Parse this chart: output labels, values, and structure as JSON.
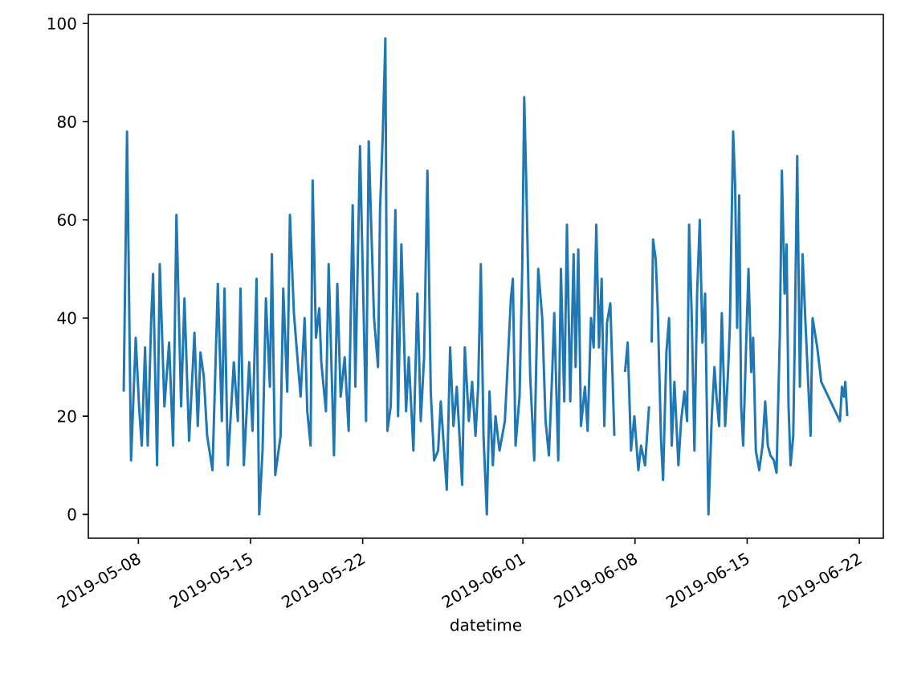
{
  "chart_data": {
    "type": "line",
    "xlabel": "datetime",
    "color": "#1f77b4",
    "xlim": [
      "2019-05-04T21:00",
      "2019-06-23T12:00"
    ],
    "ylim": [
      -4.85,
      101.85
    ],
    "xticks": [
      "2019-05-08",
      "2019-05-15",
      "2019-05-22",
      "2019-06-01",
      "2019-06-08",
      "2019-06-15",
      "2019-06-22"
    ],
    "yticks": [
      0,
      20,
      40,
      60,
      80,
      100
    ],
    "x": [
      "2019-05-07T02:00",
      "2019-05-07T07:00",
      "2019-05-07T13:00",
      "2019-05-07T20:00",
      "2019-05-08T01:00",
      "2019-05-08T05:00",
      "2019-05-08T10:00",
      "2019-05-08T14:00",
      "2019-05-08T19:00",
      "2019-05-08T22:00",
      "2019-05-09T04:00",
      "2019-05-09T08:00",
      "2019-05-09T15:00",
      "2019-05-09T22:00",
      "2019-05-10T04:00",
      "2019-05-10T09:00",
      "2019-05-10T16:00",
      "2019-05-10T21:00",
      "2019-05-11T04:00",
      "2019-05-11T12:00",
      "2019-05-11T17:00",
      "2019-05-11T21:00",
      "2019-05-12T02:00",
      "2019-05-12T07:00",
      "2019-05-12T15:00",
      "2019-05-12T23:00",
      "2019-05-13T05:00",
      "2019-05-13T09:00",
      "2019-05-13T14:00",
      "2019-05-13T23:00",
      "2019-05-14T05:00",
      "2019-05-14T09:00",
      "2019-05-14T14:00",
      "2019-05-14T22:00",
      "2019-05-15T03:00",
      "2019-05-15T09:00",
      "2019-05-15T13:00",
      "2019-05-15T18:00",
      "2019-05-15T23:00",
      "2019-05-16T05:00",
      "2019-05-16T08:00",
      "2019-05-16T13:00",
      "2019-05-16T21:00",
      "2019-05-17T01:00",
      "2019-05-17T07:00",
      "2019-05-17T11:00",
      "2019-05-17T17:00",
      "2019-05-17T21:00",
      "2019-05-18T03:00",
      "2019-05-18T09:00",
      "2019-05-18T13:00",
      "2019-05-18T18:00",
      "2019-05-18T21:00",
      "2019-05-19T02:00",
      "2019-05-19T07:00",
      "2019-05-19T10:00",
      "2019-05-19T17:00",
      "2019-05-19T21:00",
      "2019-05-20T05:00",
      "2019-05-20T10:00",
      "2019-05-20T15:00",
      "2019-05-20T21:00",
      "2019-05-21T03:00",
      "2019-05-21T09:00",
      "2019-05-21T13:00",
      "2019-05-21T20:00",
      "2019-05-22T05:00",
      "2019-05-22T09:00",
      "2019-05-22T17:00",
      "2019-05-22T23:00",
      "2019-05-23T02:00",
      "2019-05-23T06:00",
      "2019-05-23T10:00",
      "2019-05-23T13:00",
      "2019-05-23T18:00",
      "2019-05-24T01:00",
      "2019-05-24T05:00",
      "2019-05-24T10:00",
      "2019-05-24T17:00",
      "2019-05-24T21:00",
      "2019-05-25T04:00",
      "2019-05-25T10:00",
      "2019-05-25T15:00",
      "2019-05-25T20:00",
      "2019-05-26T01:00",
      "2019-05-26T06:00",
      "2019-05-26T11:00",
      "2019-05-26T17:00",
      "2019-05-26T21:00",
      "2019-05-27T06:00",
      "2019-05-27T11:00",
      "2019-05-27T16:00",
      "2019-05-27T21:00",
      "2019-05-28T05:00",
      "2019-05-28T09:00",
      "2019-05-28T15:00",
      "2019-05-28T20:00",
      "2019-05-29T01:00",
      "2019-05-29T05:00",
      "2019-05-29T09:00",
      "2019-05-29T13:00",
      "2019-05-29T18:00",
      "2019-05-29T22:00",
      "2019-05-30T03:00",
      "2019-05-30T07:00",
      "2019-05-30T13:00",
      "2019-05-30T21:00",
      "2019-05-31T01:00",
      "2019-05-31T06:00",
      "2019-05-31T09:00",
      "2019-05-31T13:00",
      "2019-05-31T19:00",
      "2019-05-31T23:00",
      "2019-06-01T02:00",
      "2019-06-01T05:00",
      "2019-06-01T11:00",
      "2019-06-01T17:00",
      "2019-06-01T23:00",
      "2019-06-02T05:00",
      "2019-06-02T10:00",
      "2019-06-02T15:00",
      "2019-06-02T20:00",
      "2019-06-02T23:00",
      "2019-06-03T05:00",
      "2019-06-03T09:00",
      "2019-06-03T14:00",
      "2019-06-03T18:00",
      "2019-06-03T23:00",
      "2019-06-04T04:00",
      "2019-06-04T07:00",
      "2019-06-04T11:00",
      "2019-06-04T15:00",
      "2019-06-04T21:00",
      "2019-06-05T01:00",
      "2019-06-05T06:00",
      "2019-06-05T10:00",
      "2019-06-05T14:00",
      "2019-06-05T18:00",
      "2019-06-05T22:00",
      "2019-06-06T02:00",
      "2019-06-06T06:00",
      "2019-06-06T11:00",
      "2019-06-06T17:00",
      "2019-06-07T02:00",
      "2019-06-07T09:00",
      "2019-06-07T13:00",
      "2019-06-07T18:00",
      "2019-06-07T23:00",
      "2019-06-08T05:00",
      "2019-06-08T09:00",
      "2019-06-08T15:00",
      "2019-06-08T21:00",
      "2019-06-08T23:00",
      "2019-06-09T01:00",
      "2019-06-09T03:00",
      "2019-06-09T07:00",
      "2019-06-09T10:00",
      "2019-06-09T15:00",
      "2019-06-09T18:00",
      "2019-06-09T23:00",
      "2019-06-10T03:00",
      "2019-06-10T07:00",
      "2019-06-10T11:00",
      "2019-06-10T17:00",
      "2019-06-10T21:00",
      "2019-06-11T02:00",
      "2019-06-11T06:00",
      "2019-06-11T09:00",
      "2019-06-11T13:00",
      "2019-06-11T17:00",
      "2019-06-11T21:00",
      "2019-06-12T01:00",
      "2019-06-12T05:00",
      "2019-06-12T09:00",
      "2019-06-12T14:00",
      "2019-06-12T19:00",
      "2019-06-12T23:00",
      "2019-06-13T02:00",
      "2019-06-13T06:00",
      "2019-06-13T10:00",
      "2019-06-13T15:00",
      "2019-06-13T19:00",
      "2019-06-13T22:00",
      "2019-06-14T03:00",
      "2019-06-14T06:00",
      "2019-06-14T09:00",
      "2019-06-14T12:00",
      "2019-06-14T15:00",
      "2019-06-14T18:00",
      "2019-06-14T23:00",
      "2019-06-15T02:00",
      "2019-06-15T06:00",
      "2019-06-15T09:00",
      "2019-06-15T13:00",
      "2019-06-15T18:00",
      "2019-06-15T23:00",
      "2019-06-16T03:00",
      "2019-06-16T07:00",
      "2019-06-16T11:00",
      "2019-06-16T16:00",
      "2019-06-16T20:00",
      "2019-06-17T01:00",
      "2019-06-17T04:00",
      "2019-06-17T08:00",
      "2019-06-17T11:00",
      "2019-06-17T14:00",
      "2019-06-17T17:00",
      "2019-06-17T21:00",
      "2019-06-17T23:00",
      "2019-06-18T03:00",
      "2019-06-18T07:00",
      "2019-06-18T11:00",
      "2019-06-18T15:00",
      "2019-06-18T20:00",
      "2019-06-18T23:00",
      "2019-06-19T02:00",
      "2019-06-19T09:00",
      "2019-06-19T15:00",
      "2019-06-20T05:00",
      "2019-06-20T19:00",
      "2019-06-20T22:00",
      "2019-06-21T01:00",
      "2019-06-21T03:00",
      "2019-06-21T06:00"
    ],
    "values": [
      25,
      78,
      11,
      36,
      22,
      14,
      34,
      14,
      39,
      49,
      10,
      51,
      22,
      35,
      14,
      61,
      22,
      44,
      15,
      37,
      18,
      33,
      28,
      16,
      9,
      47,
      19,
      46,
      10,
      31,
      19,
      46,
      10,
      31,
      17,
      48,
      0,
      13,
      44,
      26,
      53,
      8,
      16,
      46,
      25,
      61,
      41,
      34,
      24,
      40,
      21,
      14,
      68,
      36,
      42,
      31,
      21,
      51,
      12,
      47,
      24,
      32,
      17,
      63,
      26,
      75,
      19,
      76,
      40,
      30,
      62,
      77,
      97,
      17,
      22,
      62,
      20,
      55,
      21,
      32,
      13,
      45,
      19,
      32,
      70,
      25,
      11,
      13,
      23,
      5,
      34,
      18,
      26,
      6,
      34,
      19,
      27,
      16,
      26,
      51,
      16,
      0,
      25,
      10,
      20,
      13,
      19,
      30,
      44,
      48,
      14,
      24,
      50,
      85,
      68,
      28,
      11,
      50,
      40,
      19,
      12,
      29,
      41,
      11,
      50,
      23,
      59,
      23,
      53,
      30,
      54,
      18,
      26,
      17,
      40,
      34,
      59,
      34,
      48,
      18,
      39,
      43,
      16,
      null,
      29,
      35,
      13,
      20,
      9,
      14,
      10,
      22,
      null,
      35,
      56,
      52,
      42,
      15,
      7,
      33,
      40,
      14,
      27,
      10,
      19,
      25,
      19,
      59,
      40,
      13,
      45,
      60,
      35,
      45,
      0,
      20,
      30,
      24,
      18,
      41,
      18,
      28,
      38,
      78,
      67,
      38,
      65,
      22,
      14,
      37,
      50,
      29,
      36,
      13,
      9,
      14,
      23,
      14,
      12,
      11,
      8.5,
      37,
      70,
      45,
      55,
      22,
      10,
      16,
      33,
      73,
      26,
      53,
      40,
      25,
      16,
      40,
      34,
      27,
      23,
      19,
      26,
      24,
      27,
      20
    ]
  }
}
